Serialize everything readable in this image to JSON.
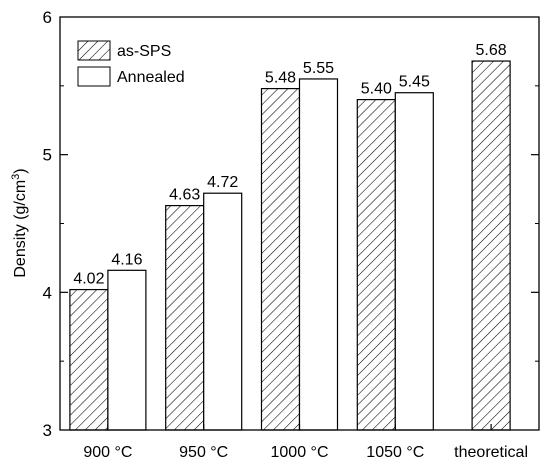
{
  "chart_data": {
    "type": "bar",
    "categories": [
      "900 °C",
      "950 °C",
      "1000 °C",
      "1050 °C",
      "theoretical"
    ],
    "series": [
      {
        "name": "as-SPS",
        "values": [
          4.02,
          4.63,
          5.48,
          5.4,
          5.68
        ],
        "labels": [
          "4.02",
          "4.63",
          "5.48",
          "5.40",
          "5.68"
        ],
        "pattern": "hatched"
      },
      {
        "name": "Annealed",
        "values": [
          4.16,
          4.72,
          5.55,
          5.45,
          null
        ],
        "labels": [
          "4.16",
          "4.72",
          "5.55",
          "5.45",
          ""
        ],
        "pattern": "white"
      }
    ],
    "ylabel_main": "Density (g/cm",
    "ylabel_sup": "3",
    "ylabel_close": ")",
    "xlabel": "",
    "title": "",
    "ylim": [
      3,
      6
    ],
    "yticks": [
      "3",
      "4",
      "5",
      "6"
    ],
    "legend_position": "top-left",
    "grid": false
  }
}
